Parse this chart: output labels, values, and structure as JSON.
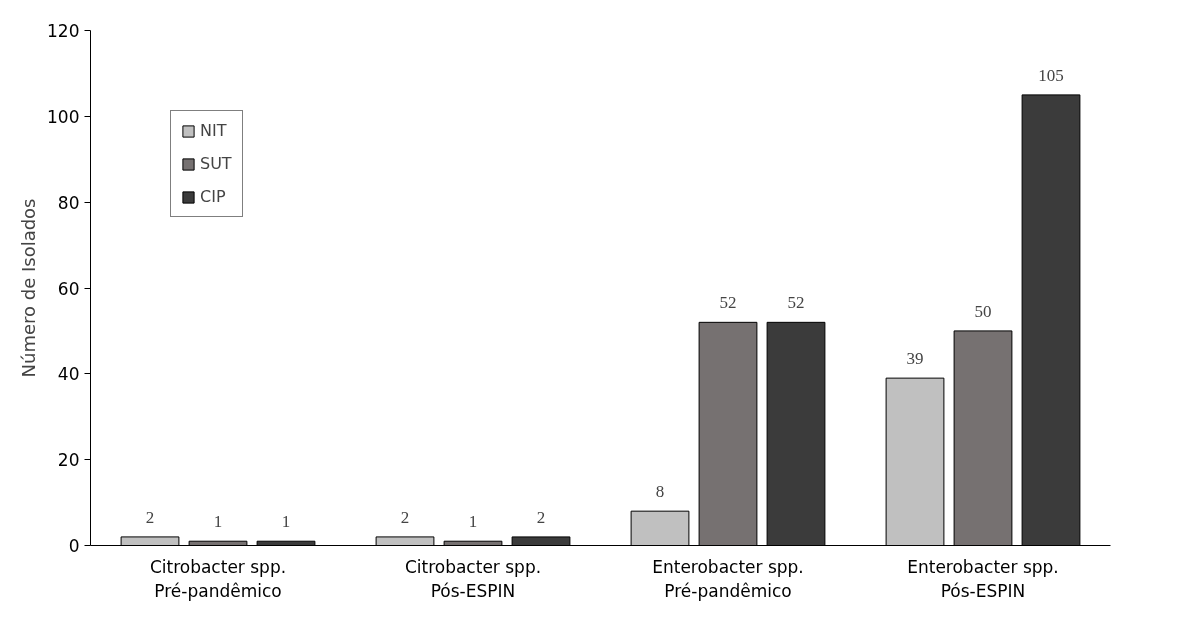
{
  "chart_data": {
    "type": "bar",
    "ylabel": "Número de Isolados",
    "categories": [
      "Citrobacter spp.\nPré-pandêmico",
      "Citrobacter spp.\nPós-ESPIN",
      "Enterobacter spp.\nPré-pandêmico",
      "Enterobacter spp.\nPós-ESPIN"
    ],
    "series": [
      {
        "name": "NIT",
        "color": "#c0c0c0",
        "values": [
          2,
          2,
          8,
          39
        ]
      },
      {
        "name": "SUT",
        "color": "#767171",
        "values": [
          1,
          1,
          52,
          50
        ]
      },
      {
        "name": "CIP",
        "color": "#3b3b3b",
        "values": [
          1,
          2,
          52,
          105
        ]
      }
    ],
    "ylim": [
      0,
      120
    ],
    "yticks": [
      0,
      20,
      40,
      60,
      80,
      100,
      120
    ],
    "grid": false,
    "legend": "top left",
    "data_labels": true
  }
}
